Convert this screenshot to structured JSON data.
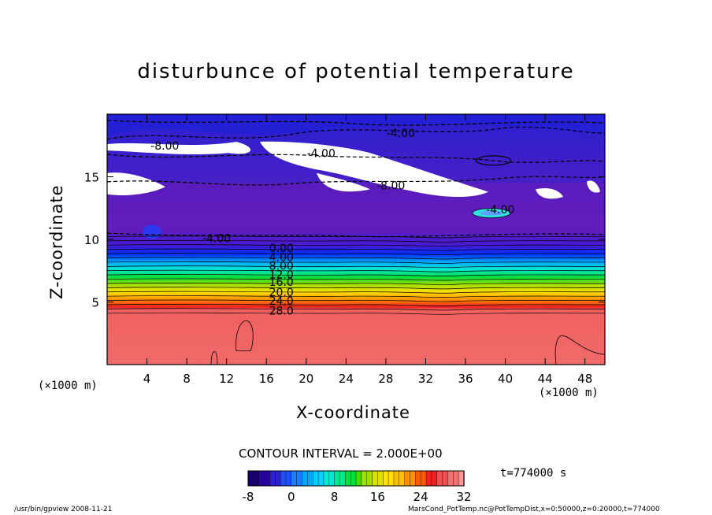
{
  "chart_data": {
    "type": "heatmap",
    "title": "disturbunce of potential temperature",
    "xlabel": "X-coordinate",
    "ylabel": "Z-coordinate",
    "x_unit_left": "(×1000 m)",
    "x_unit_right": "(×1000 m)",
    "xlim": [
      0,
      50
    ],
    "ylim": [
      0,
      20
    ],
    "x_ticks": [
      4,
      8,
      12,
      16,
      20,
      24,
      28,
      32,
      36,
      40,
      44,
      48
    ],
    "y_ticks": [
      5,
      10,
      15
    ],
    "contour_labels": [
      {
        "text": "-4.00",
        "x": 29.5,
        "z": 18.5
      },
      {
        "text": "-8.00",
        "x": 5.8,
        "z": 17.5
      },
      {
        "text": "-4.00",
        "x": 21.5,
        "z": 16.9
      },
      {
        "text": "-8.00",
        "x": 28.5,
        "z": 14.3
      },
      {
        "text": "-4.00",
        "x": 39.5,
        "z": 12.4
      },
      {
        "text": "-4.00",
        "x": 11.0,
        "z": 10.1
      },
      {
        "text": "0.00",
        "x": 17.5,
        "z": 9.3
      },
      {
        "text": "4.00",
        "x": 17.5,
        "z": 8.6
      },
      {
        "text": "8.00",
        "x": 17.5,
        "z": 7.9
      },
      {
        "text": "12.0",
        "x": 17.5,
        "z": 7.2
      },
      {
        "text": "16.0",
        "x": 17.5,
        "z": 6.6
      },
      {
        "text": "20.0",
        "x": 17.5,
        "z": 5.8
      },
      {
        "text": "24.0",
        "x": 17.5,
        "z": 5.1
      },
      {
        "text": "28.0",
        "x": 17.5,
        "z": 4.3
      }
    ],
    "contour_interval": "CONTOUR INTERVAL = 2.000E+00",
    "colorbar": {
      "min": -8,
      "max": 32,
      "ticks": [
        "-8",
        "0",
        "8",
        "16",
        "24",
        "32"
      ],
      "colors": [
        "#1a006e",
        "#2a00a0",
        "#2b1fd0",
        "#1f4fff",
        "#1e7cff",
        "#00a8ff",
        "#00d0ff",
        "#00e8d0",
        "#00e890",
        "#00e040",
        "#40e000",
        "#a0e000",
        "#e0e000",
        "#ffe000",
        "#ffc000",
        "#ff9000",
        "#ff5a00",
        "#f02020",
        "#f05050",
        "#f07070",
        "#ff9090"
      ]
    },
    "time": "t=774000 s",
    "grid": false
  },
  "footer": {
    "left": "/usr/bin/gpview   2008-11-21",
    "right": "MarsCond_PotTemp.nc@PotTempDist,x=0:50000,z=0:20000,t=774000"
  }
}
